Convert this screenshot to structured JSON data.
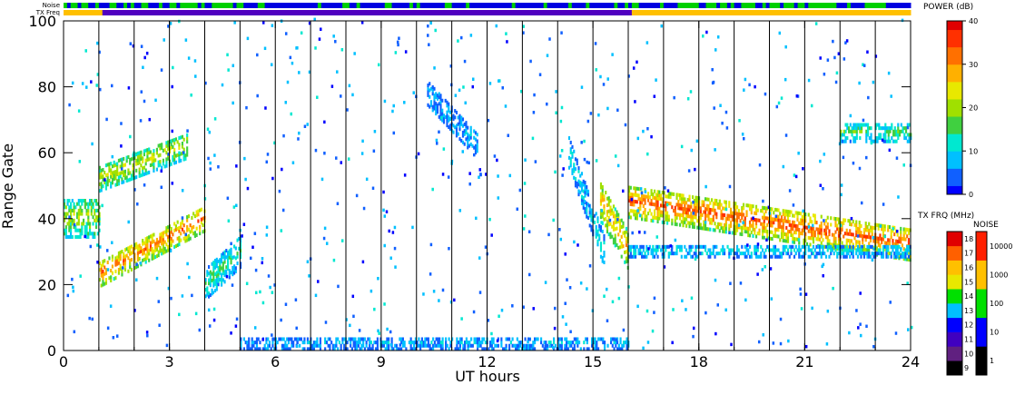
{
  "header": {
    "noise_label": "Noise",
    "txfreq_label": "TX Freq"
  },
  "axes": {
    "xlabel": "UT hours",
    "ylabel": "Range Gate",
    "xticks": [
      "0",
      "3",
      "6",
      "9",
      "12",
      "15",
      "18",
      "21",
      "24"
    ],
    "yticks": [
      "0",
      "20",
      "40",
      "60",
      "80",
      "100"
    ]
  },
  "colorbars": {
    "power": {
      "title": "POWER (dB)",
      "ticks": [
        "0",
        "10",
        "20",
        "30",
        "40"
      ]
    },
    "txfreq": {
      "title": "TX FRQ (MHz)",
      "ticks": [
        "9",
        "10",
        "11",
        "12",
        "13",
        "14",
        "15",
        "16",
        "17",
        "18"
      ]
    },
    "noise": {
      "title": "NOISE",
      "ticks": [
        "1",
        "10",
        "100",
        "1000",
        "10000"
      ]
    }
  },
  "colors": {
    "power_scale": [
      "#0000ff",
      "#1060ff",
      "#00c0ff",
      "#00e8d0",
      "#40d040",
      "#a0e000",
      "#e8e800",
      "#ffb000",
      "#ff7000",
      "#ff3000",
      "#e00000"
    ],
    "txfreq_scale": [
      "#000000",
      "#602080",
      "#4000c0",
      "#0000ff",
      "#00c0ff",
      "#00e000",
      "#e8e800",
      "#ffc000",
      "#ff6000",
      "#e00000"
    ],
    "noise_scale": [
      "#000000",
      "#0000ff",
      "#00e000",
      "#ffc000",
      "#ff2000"
    ],
    "noise_strip": [
      "#00d000",
      "#0000e0"
    ],
    "txfreq_strip": [
      "#5000c0",
      "#ffc000"
    ]
  },
  "chart_data": {
    "type": "heatmap",
    "title": "",
    "xlabel": "UT hours",
    "ylabel": "Range Gate",
    "xlim": [
      0,
      24
    ],
    "ylim": [
      0,
      100
    ],
    "colorbar": {
      "label": "POWER (dB)",
      "range": [
        0,
        40
      ]
    },
    "scan_boundaries_hours": [
      1,
      2,
      3,
      4,
      5,
      6,
      7,
      8,
      9,
      10,
      11,
      12,
      13,
      14,
      15,
      16,
      17,
      18,
      19,
      20,
      21,
      22,
      23
    ],
    "echo_bands": [
      {
        "t_start": 0.0,
        "t_end": 1.0,
        "gate_center": 40,
        "gate_width": 12,
        "power_db": 20
      },
      {
        "t_start": 1.0,
        "t_end": 4.0,
        "gate_center_start": 23,
        "gate_center_end": 40,
        "gate_width": 8,
        "power_db": 32
      },
      {
        "t_start": 1.0,
        "t_end": 3.5,
        "gate_center_start": 52,
        "gate_center_end": 62,
        "gate_width": 8,
        "power_db": 22
      },
      {
        "t_start": 4.0,
        "t_end": 5.0,
        "gate_center_start": 20,
        "gate_center_end": 30,
        "gate_width": 10,
        "power_db": 14
      },
      {
        "t_start": 10.3,
        "t_end": 11.7,
        "gate_center_start": 78,
        "gate_center_end": 62,
        "gate_width": 8,
        "power_db": 8
      },
      {
        "t_start": 14.3,
        "t_end": 15.3,
        "gate_center_start": 60,
        "gate_center_end": 30,
        "gate_width": 10,
        "power_db": 10
      },
      {
        "t_start": 15.2,
        "t_end": 16.0,
        "gate_center_start": 45,
        "gate_center_end": 30,
        "gate_width": 12,
        "power_db": 28
      },
      {
        "t_start": 16.0,
        "t_end": 24.0,
        "gate_center_start": 45,
        "gate_center_end": 32,
        "gate_width": 10,
        "power_db": 34
      },
      {
        "t_start": 16.0,
        "t_end": 24.0,
        "gate_center": 30,
        "gate_width": 4,
        "power_db": 10
      },
      {
        "t_start": 22.0,
        "t_end": 24.0,
        "gate_center": 66,
        "gate_width": 6,
        "power_db": 15
      },
      {
        "t_start": 5.0,
        "t_end": 16.0,
        "gate_center": 2,
        "gate_width": 4,
        "power_db": 8
      }
    ]
  }
}
